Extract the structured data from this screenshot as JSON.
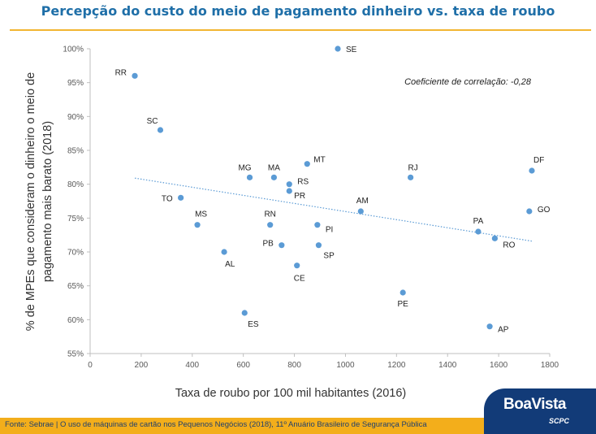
{
  "footer": {
    "source": "Fonte: Sebrae | O uso de máquinas de cartão nos Pequenos Negócios (2018), 11º Anuário Brasileiro de Segurança Pública",
    "logo": "BoaVista",
    "logo_sub": "SCPC"
  },
  "colors": {
    "title": "#1f6fa8",
    "accent": "#f3ae1b",
    "point": "#5b9bd5",
    "logo_bg": "#123b78"
  },
  "chart_data": {
    "type": "scatter",
    "title": "Percepção do custo do meio de pagamento dinheiro vs. taxa de roubo",
    "xlabel": "Taxa de roubo por 100 mil habitantes (2016)",
    "ylabel_lines": [
      "% de MPEs que consideram o dinheiro o meio de",
      "pagamento mais barato (2018)"
    ],
    "xlim": [
      0,
      1800
    ],
    "ylim": [
      55,
      100
    ],
    "xticks": [
      0,
      200,
      400,
      600,
      800,
      1000,
      1200,
      1400,
      1600,
      1800
    ],
    "yticks": [
      55,
      60,
      65,
      70,
      75,
      80,
      85,
      90,
      95,
      100
    ],
    "ytick_labels": [
      "55%",
      "60%",
      "65%",
      "70%",
      "75%",
      "80%",
      "85%",
      "90%",
      "95%",
      "100%"
    ],
    "annotation": "Coeficiente de correlação: -0,28",
    "grid": false,
    "trendline": {
      "style": "dotted",
      "x": [
        175,
        1730
      ],
      "y": [
        80.9,
        71.6
      ]
    },
    "points": [
      {
        "label": "SE",
        "x": 970,
        "y": 100
      },
      {
        "label": "RR",
        "x": 175,
        "y": 96
      },
      {
        "label": "SC",
        "x": 275,
        "y": 88
      },
      {
        "label": "MT",
        "x": 850,
        "y": 83
      },
      {
        "label": "DF",
        "x": 1730,
        "y": 82
      },
      {
        "label": "MG",
        "x": 625,
        "y": 81
      },
      {
        "label": "MA",
        "x": 720,
        "y": 81
      },
      {
        "label": "RJ",
        "x": 1255,
        "y": 81
      },
      {
        "label": "RS",
        "x": 780,
        "y": 80
      },
      {
        "label": "PR",
        "x": 780,
        "y": 79
      },
      {
        "label": "TO",
        "x": 355,
        "y": 78
      },
      {
        "label": "AM",
        "x": 1060,
        "y": 76
      },
      {
        "label": "GO",
        "x": 1720,
        "y": 76
      },
      {
        "label": "MS",
        "x": 420,
        "y": 74
      },
      {
        "label": "RN",
        "x": 705,
        "y": 74
      },
      {
        "label": "PI",
        "x": 890,
        "y": 74
      },
      {
        "label": "PA",
        "x": 1520,
        "y": 73
      },
      {
        "label": "RO",
        "x": 1585,
        "y": 72
      },
      {
        "label": "PB",
        "x": 750,
        "y": 71
      },
      {
        "label": "SP",
        "x": 895,
        "y": 71
      },
      {
        "label": "AL",
        "x": 525,
        "y": 70
      },
      {
        "label": "CE",
        "x": 810,
        "y": 68
      },
      {
        "label": "PE",
        "x": 1225,
        "y": 64
      },
      {
        "label": "ES",
        "x": 605,
        "y": 61
      },
      {
        "label": "AP",
        "x": 1565,
        "y": 59
      }
    ]
  }
}
